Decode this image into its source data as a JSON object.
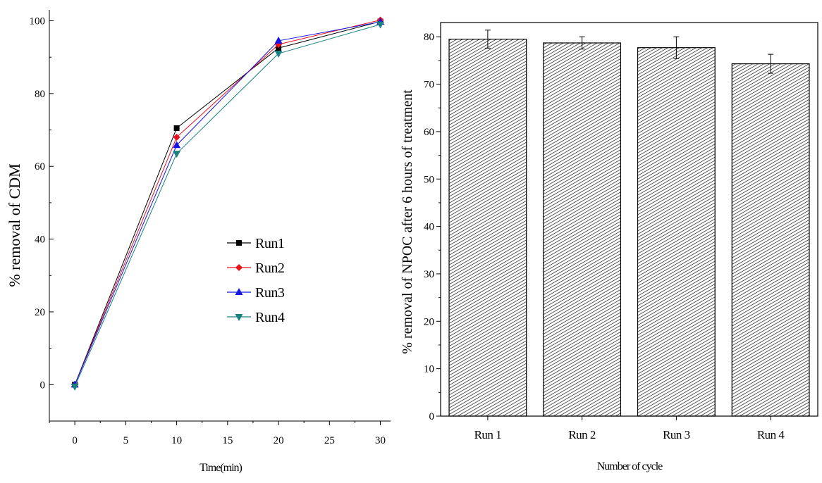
{
  "chart_data": [
    {
      "type": "line",
      "xlabel": "Time(min)",
      "ylabel": "% removal of CDM",
      "xlim": [
        -2.5,
        31
      ],
      "ylim": [
        -10,
        103
      ],
      "x_ticks": [
        0,
        5,
        10,
        15,
        20,
        25,
        30
      ],
      "y_ticks": [
        0,
        20,
        40,
        60,
        80,
        100
      ],
      "legend_position": "center-right",
      "x": [
        0,
        10,
        20,
        30
      ],
      "series": [
        {
          "name": "Run1",
          "values": [
            0,
            70.5,
            92.5,
            99.8
          ],
          "color": "#000000",
          "marker": "square"
        },
        {
          "name": "Run2",
          "values": [
            0,
            68,
            93.5,
            100.2
          ],
          "color": "#e8141d",
          "marker": "diamond"
        },
        {
          "name": "Run3",
          "values": [
            0,
            65.8,
            94.5,
            99.7
          ],
          "color": "#1414e6",
          "marker": "triangle-up"
        },
        {
          "name": "Run4",
          "values": [
            -0.5,
            63.5,
            91,
            99
          ],
          "color": "#1a8080",
          "marker": "triangle-down"
        }
      ]
    },
    {
      "type": "bar",
      "xlabel": "Number of cycle",
      "ylabel": "% removal of NPOC  after 6 hours of treatment",
      "ylim": [
        0,
        83
      ],
      "y_ticks": [
        0,
        10,
        20,
        30,
        40,
        50,
        60,
        70,
        80
      ],
      "categories": [
        "Run 1",
        "Run 2",
        "Run 3",
        "Run 4"
      ],
      "values": [
        79.5,
        78.7,
        77.7,
        74.3
      ],
      "errors": [
        1.9,
        1.3,
        2.3,
        2.0
      ],
      "fill": "hatched"
    }
  ]
}
